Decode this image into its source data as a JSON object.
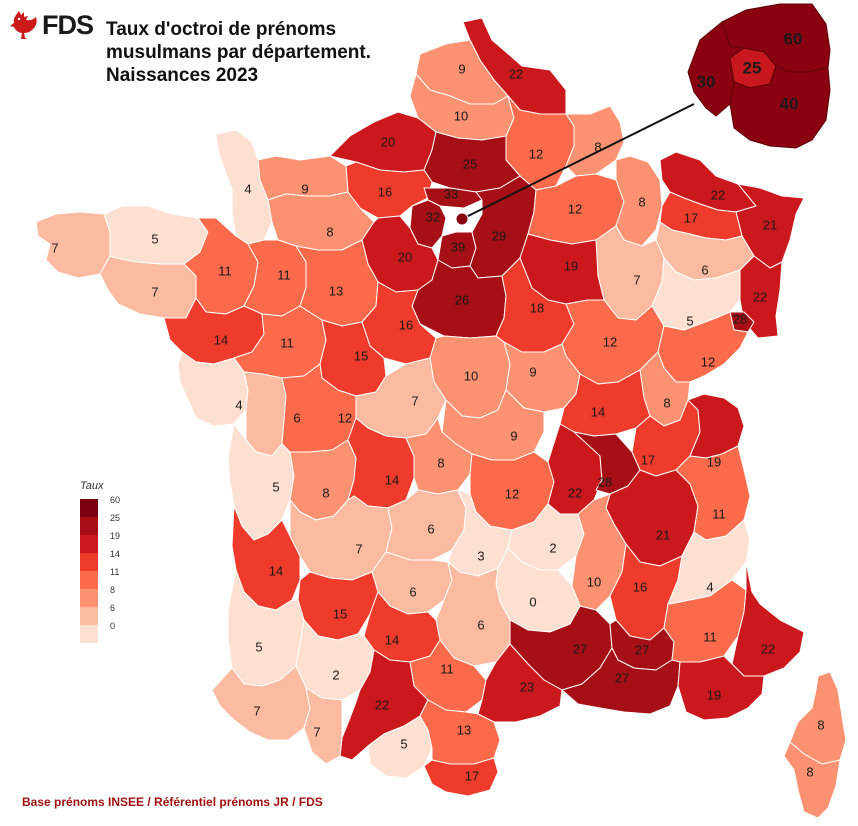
{
  "header": {
    "logo_text": "FDS",
    "title_lines": [
      "Taux d'octroi de prénoms",
      "musulmans par département.",
      "Naissances 2023"
    ]
  },
  "legend": {
    "title": "Taux",
    "classes": [
      {
        "label": "60",
        "color": "#7a0010"
      },
      {
        "label": "25",
        "color": "#a50f15"
      },
      {
        "label": "19",
        "color": "#cb181d"
      },
      {
        "label": "14",
        "color": "#ef3b2c"
      },
      {
        "label": "11",
        "color": "#fb6a4a"
      },
      {
        "label": "8",
        "color": "#fc9272"
      },
      {
        "label": "6",
        "color": "#fcbba1"
      },
      {
        "label": "0",
        "color": "#fee0d2"
      }
    ]
  },
  "source": "Base prénoms INSEE / Référentiel prénoms JR / FDS",
  "colors": {
    "border": "#ffffff",
    "paris_zoom_dark": "#8b0010",
    "paris_zoom_mid": "#c8181d"
  },
  "departments": [
    {
      "id": "nord",
      "value": "22"
    },
    {
      "id": "pas-de-calais",
      "value": "9"
    },
    {
      "id": "somme",
      "value": "10"
    },
    {
      "id": "aisne",
      "value": "12"
    },
    {
      "id": "ardennes",
      "value": "8"
    },
    {
      "id": "seine-maritime",
      "value": "20"
    },
    {
      "id": "oise",
      "value": "25"
    },
    {
      "id": "eure",
      "value": "16"
    },
    {
      "id": "val-d-oise",
      "value": "33"
    },
    {
      "id": "yvelines",
      "value": "32"
    },
    {
      "id": "essonne",
      "value": "39"
    },
    {
      "id": "seine-et-marne",
      "value": "29"
    },
    {
      "id": "marne",
      "value": "12"
    },
    {
      "id": "meuse",
      "value": "8"
    },
    {
      "id": "moselle",
      "value": "22"
    },
    {
      "id": "bas-rhin",
      "value": "21"
    },
    {
      "id": "meurthe-et-moselle",
      "value": "17"
    },
    {
      "id": "vosges",
      "value": "6"
    },
    {
      "id": "haut-rhin",
      "value": "22"
    },
    {
      "id": "territoire-de-belfort",
      "value": "28"
    },
    {
      "id": "haute-marne",
      "value": "7"
    },
    {
      "id": "haute-saone",
      "value": "5"
    },
    {
      "id": "aube",
      "value": "19"
    },
    {
      "id": "manche",
      "value": "4"
    },
    {
      "id": "calvados",
      "value": "9"
    },
    {
      "id": "orne",
      "value": "8"
    },
    {
      "id": "eure-et-loir",
      "value": "20"
    },
    {
      "id": "loiret",
      "value": "26"
    },
    {
      "id": "yonne",
      "value": "18"
    },
    {
      "id": "finistere",
      "value": "7"
    },
    {
      "id": "cotes-d-armor",
      "value": "5"
    },
    {
      "id": "morbihan",
      "value": "7"
    },
    {
      "id": "ille-et-vilaine",
      "value": "11"
    },
    {
      "id": "mayenne",
      "value": "11"
    },
    {
      "id": "sarthe",
      "value": "13"
    },
    {
      "id": "loir-et-cher",
      "value": "16"
    },
    {
      "id": "cote-d-or",
      "value": "12"
    },
    {
      "id": "doubs",
      "value": "12"
    },
    {
      "id": "jura",
      "value": "8"
    },
    {
      "id": "loire-atlantique",
      "value": "14"
    },
    {
      "id": "maine-et-loire",
      "value": "11"
    },
    {
      "id": "indre-et-loire",
      "value": "15"
    },
    {
      "id": "cher",
      "value": "10"
    },
    {
      "id": "nievre",
      "value": "9"
    },
    {
      "id": "saone-et-loire",
      "value": "14"
    },
    {
      "id": "ain",
      "value": "17"
    },
    {
      "id": "haute-savoie",
      "value": "19"
    },
    {
      "id": "vendee",
      "value": "4"
    },
    {
      "id": "deux-sevres",
      "value": "6"
    },
    {
      "id": "vienne",
      "value": "12"
    },
    {
      "id": "indre",
      "value": "7"
    },
    {
      "id": "allier",
      "value": "9"
    },
    {
      "id": "charente-maritime",
      "value": "5"
    },
    {
      "id": "charente",
      "value": "8"
    },
    {
      "id": "haute-vienne",
      "value": "14"
    },
    {
      "id": "creuse",
      "value": "8"
    },
    {
      "id": "puy-de-dome",
      "value": "12"
    },
    {
      "id": "loire",
      "value": "22"
    },
    {
      "id": "rhone",
      "value": "28"
    },
    {
      "id": "isere",
      "value": "21"
    },
    {
      "id": "savoie",
      "value": "11"
    },
    {
      "id": "gironde",
      "value": "14"
    },
    {
      "id": "dordogne",
      "value": "7"
    },
    {
      "id": "correze",
      "value": "6"
    },
    {
      "id": "cantal",
      "value": "3"
    },
    {
      "id": "haute-loire",
      "value": "2"
    },
    {
      "id": "ardeche",
      "value": "10"
    },
    {
      "id": "drome",
      "value": "16"
    },
    {
      "id": "hautes-alpes",
      "value": "4"
    },
    {
      "id": "lot",
      "value": "6"
    },
    {
      "id": "lozere",
      "value": "0"
    },
    {
      "id": "aveyron",
      "value": "6"
    },
    {
      "id": "lot-et-garonne",
      "value": "15"
    },
    {
      "id": "tarn-et-garonne",
      "value": "14"
    },
    {
      "id": "tarn",
      "value": "11"
    },
    {
      "id": "gard",
      "value": "27"
    },
    {
      "id": "vaucluse",
      "value": "27"
    },
    {
      "id": "alpes-de-haute-provence",
      "value": "11"
    },
    {
      "id": "alpes-maritimes",
      "value": "22"
    },
    {
      "id": "landes",
      "value": "5"
    },
    {
      "id": "gers",
      "value": "2"
    },
    {
      "id": "haute-garonne",
      "value": "22"
    },
    {
      "id": "herault",
      "value": "23"
    },
    {
      "id": "bouches-du-rhone",
      "value": "27"
    },
    {
      "id": "var",
      "value": "19"
    },
    {
      "id": "pyrenees-atlantiques",
      "value": "7"
    },
    {
      "id": "hautes-pyrenees",
      "value": "7"
    },
    {
      "id": "ariege",
      "value": "5"
    },
    {
      "id": "aude",
      "value": "13"
    },
    {
      "id": "pyrenees-orientales",
      "value": "17"
    },
    {
      "id": "haute-corse",
      "value": "8"
    },
    {
      "id": "corse-du-sud",
      "value": "8"
    }
  ],
  "paris_zoom": [
    {
      "id": "seine-saint-denis",
      "value": "60"
    },
    {
      "id": "paris",
      "value": "25"
    },
    {
      "id": "hauts-de-seine",
      "value": "30"
    },
    {
      "id": "val-de-marne",
      "value": "40"
    }
  ]
}
